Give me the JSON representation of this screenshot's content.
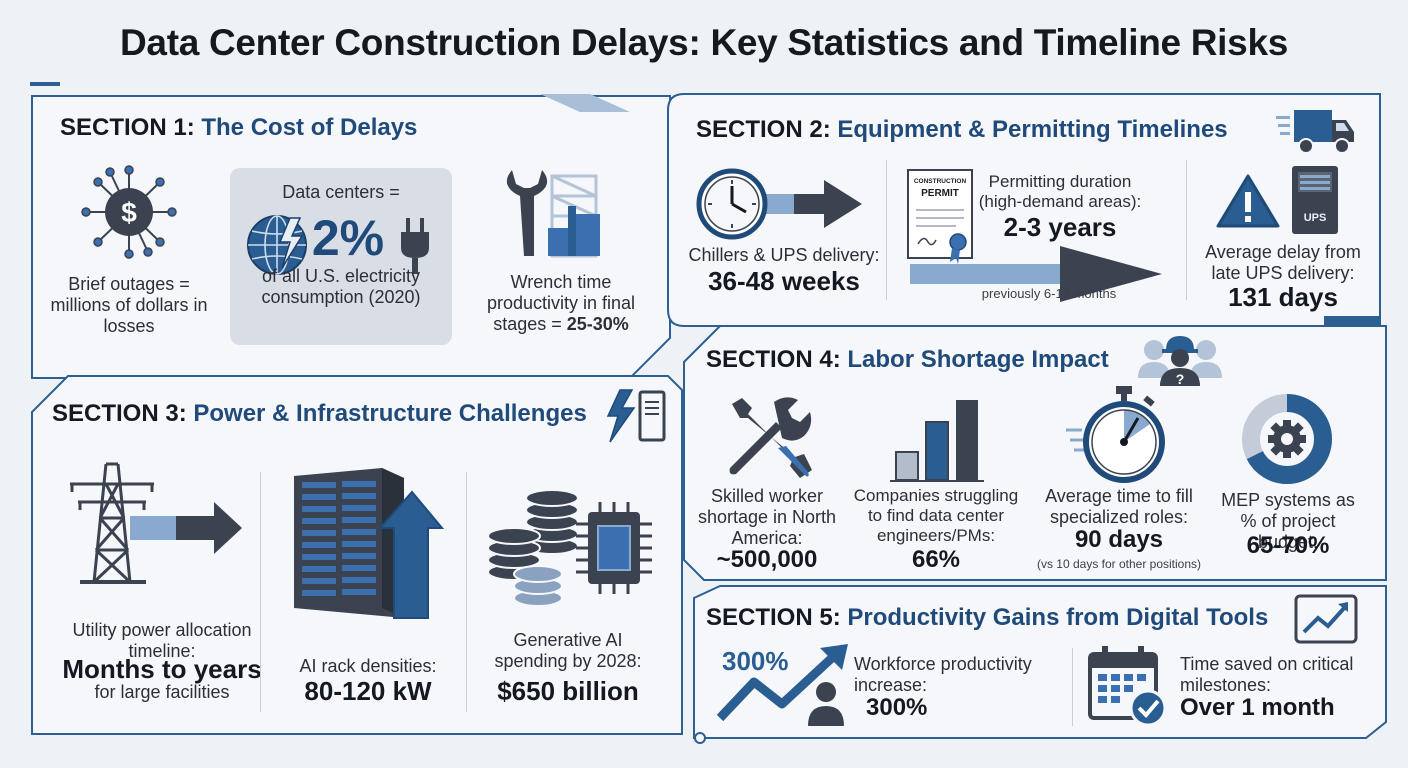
{
  "title": "Data Center Construction Delays: Key Statistics and Timeline Risks",
  "sections": {
    "s1": {
      "num": "SECTION 1:",
      "name": "The Cost of Delays",
      "outages": "Brief outages = millions of dollars in losses",
      "dc_prefix": "Data centers =",
      "dc_value": "2%",
      "dc_suffix": "of all U.S. electricity consumption (2020)",
      "wrench": "Wrench time productivity in final stages = ",
      "wrench_value": "25-30%"
    },
    "s2": {
      "num": "SECTION 2:",
      "name": "Equipment & Permitting Timelines",
      "chillers_label": "Chillers & UPS delivery:",
      "chillers_value": "36-48 weeks",
      "permit_doc_top": "CONSTRUCTION",
      "permit_doc_main": "PERMIT",
      "permit_label": "Permitting duration (high-demand areas):",
      "permit_value": "2-3 years",
      "permit_prev": "previously 6-12 months",
      "ups_label": "Average delay from late UPS delivery:",
      "ups_value": "131 days",
      "ups_box": "UPS"
    },
    "s3": {
      "num": "SECTION 3:",
      "name": "Power & Infrastructure Challenges",
      "utility_label": "Utility power allocation timeline:",
      "utility_value": "Months to years",
      "utility_sub": "for large facilities",
      "rack_label": "AI rack densities:",
      "rack_value": "80-120 kW",
      "genai_label": "Generative AI spending by 2028:",
      "genai_value": "$650 billion"
    },
    "s4": {
      "num": "SECTION 4:",
      "name": "Labor Shortage Impact",
      "skilled_label": "Skilled worker shortage in North America:",
      "skilled_value": "~500,000",
      "companies_label": "Companies struggling to find data center engineers/PMs:",
      "companies_value": "66%",
      "fill_label": "Average time to fill specialized roles:",
      "fill_value": "90 days",
      "fill_sub": "(vs 10 days for other positions)",
      "mep_label": "MEP systems as % of project budget:",
      "mep_value": "65-70%",
      "mep_share": 0.675
    },
    "s5": {
      "num": "SECTION 5:",
      "name": "Productivity Gains from Digital Tools",
      "chart_value": "300%",
      "workforce_label": "Workforce productivity increase:",
      "workforce_value": "300%",
      "time_label": "Time saved on critical milestones:",
      "time_value": "Over 1 month"
    }
  },
  "colors": {
    "navy": "#1f4a7a",
    "accent": "#3a6fb0",
    "light_blue": "#8aa9cf",
    "dark": "#3b4350",
    "panel_border": "#2c5f92"
  },
  "icons": [
    "dollar-network-icon",
    "globe-icon",
    "plug-icon",
    "wrench-building-icon",
    "clock-icon",
    "permit-document-icon",
    "delivery-truck-icon",
    "warning-icon",
    "ups-unit-icon",
    "lightning-server-icon",
    "power-tower-icon",
    "server-rack-icon",
    "coins-chip-icon",
    "workers-icon",
    "tools-icon",
    "bar-chart-icon",
    "stopwatch-icon",
    "donut-gear-icon",
    "tablet-chart-icon",
    "growth-arrow-icon",
    "calendar-check-icon"
  ]
}
